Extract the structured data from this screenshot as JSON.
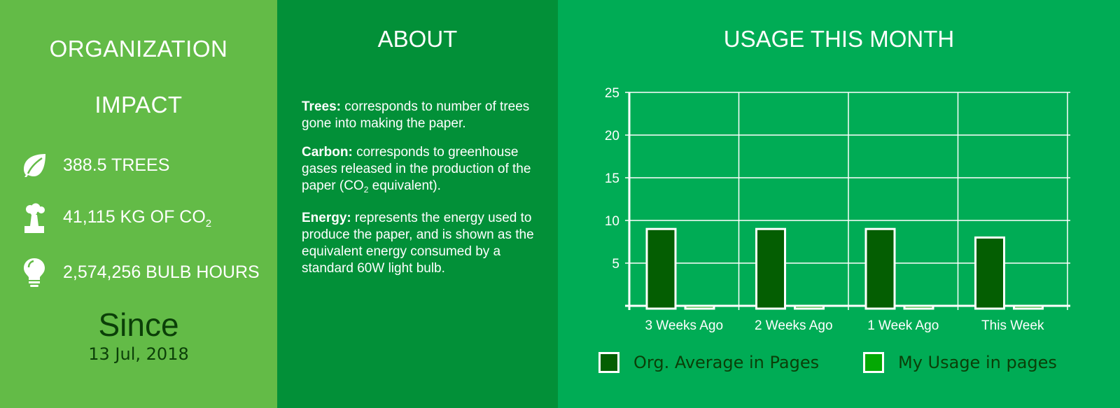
{
  "impact": {
    "title_line1": "ORGANIZATION",
    "title_line2": "IMPACT",
    "trees": "388.5 TREES",
    "co2_prefix": "41,115 KG OF CO",
    "co2_sub": "2",
    "bulb": "2,574,256 BULB HOURS",
    "since_label": "Since",
    "since_date": "13 Jul, 2018",
    "icons": [
      "leaf-icon",
      "factory-icon",
      "lightbulb-icon"
    ]
  },
  "about": {
    "title": "ABOUT",
    "trees_term": "Trees:",
    "trees_text": " corresponds to number of trees gone into making the paper.",
    "carbon_term": "Carbon:",
    "carbon_text": " corresponds to greenhouse gases released in the production of the paper (CO",
    "carbon_sub": "2",
    "carbon_tail": " equivalent).",
    "energy_term": "Energy:",
    "energy_text": " represents the energy used to produce the paper, and is shown as the equivalent energy consumed by a standard 60W light bulb."
  },
  "usage": {
    "title": "USAGE THIS MONTH"
  },
  "colors": {
    "panel_impact": "#63bb47",
    "panel_about": "#029038",
    "panel_usage": "#00ac55",
    "org_series": "#045e02",
    "my_series": "#04a803",
    "dark_text": "#0b3f08"
  },
  "chart_data": {
    "type": "bar",
    "title": "USAGE THIS MONTH",
    "categories": [
      "3 Weeks Ago",
      "2 Weeks Ago",
      "1 Week Ago",
      "This Week"
    ],
    "series": [
      {
        "name": "Org. Average in Pages",
        "values": [
          9,
          9,
          9,
          8
        ],
        "color": "#045e02"
      },
      {
        "name": "My Usage in pages",
        "values": [
          0,
          0,
          0,
          0
        ],
        "color": "#04a803"
      }
    ],
    "yticks": [
      5,
      10,
      15,
      20,
      25
    ],
    "ylim": [
      0,
      25
    ],
    "grid": true,
    "legend": "bottom"
  }
}
